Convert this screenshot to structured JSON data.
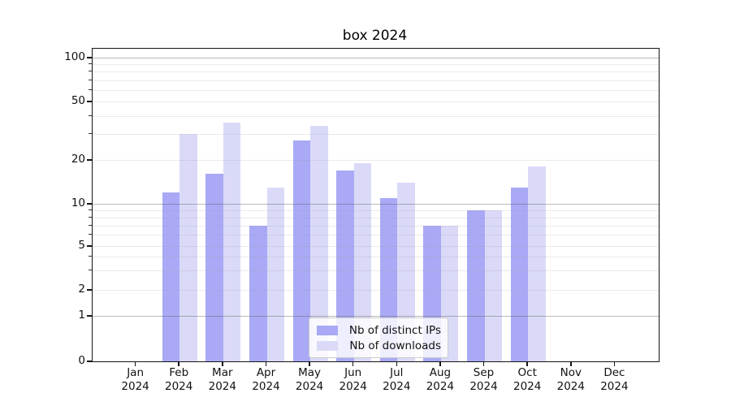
{
  "title": "box 2024",
  "legend": {
    "items": [
      {
        "label": "Nb of distinct IPs",
        "color": "#a9a9f6"
      },
      {
        "label": "Nb of downloads",
        "color": "#dadaf8"
      }
    ]
  },
  "chart_data": {
    "type": "bar",
    "title": "box 2024",
    "categories": [
      {
        "month": "Jan",
        "year": "2024"
      },
      {
        "month": "Feb",
        "year": "2024"
      },
      {
        "month": "Mar",
        "year": "2024"
      },
      {
        "month": "Apr",
        "year": "2024"
      },
      {
        "month": "May",
        "year": "2024"
      },
      {
        "month": "Jun",
        "year": "2024"
      },
      {
        "month": "Jul",
        "year": "2024"
      },
      {
        "month": "Aug",
        "year": "2024"
      },
      {
        "month": "Sep",
        "year": "2024"
      },
      {
        "month": "Oct",
        "year": "2024"
      },
      {
        "month": "Nov",
        "year": "2024"
      },
      {
        "month": "Dec",
        "year": "2024"
      }
    ],
    "series": [
      {
        "name": "Nb of distinct IPs",
        "color": "#a9a9f6",
        "values": [
          0,
          12,
          16,
          7,
          27,
          17,
          11,
          7,
          9,
          13,
          0,
          0
        ]
      },
      {
        "name": "Nb of downloads",
        "color": "#dadaf8",
        "values": [
          0,
          30,
          36,
          13,
          34,
          19,
          14,
          7,
          9,
          18,
          0,
          0
        ]
      }
    ],
    "xlabel": "",
    "ylabel": "",
    "yscale": "log-like with linear segment near zero",
    "y_tick_labels": [
      "0",
      "1",
      "2",
      "5",
      "10",
      "20",
      "50",
      "100"
    ],
    "y_ticks": [
      0,
      1,
      2,
      5,
      10,
      20,
      50,
      100
    ],
    "y_major_gridlines": [
      1,
      10,
      100
    ],
    "y_minor_gridlines": [
      2,
      3,
      4,
      5,
      6,
      7,
      8,
      9,
      20,
      30,
      40,
      50,
      60,
      70,
      80,
      90
    ],
    "ylim": [
      0,
      115
    ],
    "grid": true,
    "legend_position": "lower center"
  }
}
